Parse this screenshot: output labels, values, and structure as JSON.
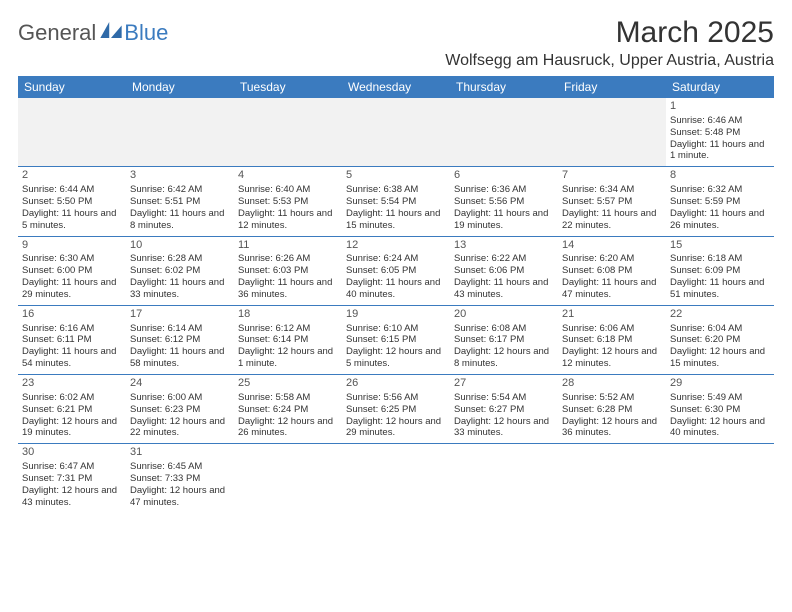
{
  "logo": {
    "text1": "General",
    "text2": "Blue"
  },
  "title": "March 2025",
  "location": "Wolfsegg am Hausruck, Upper Austria, Austria",
  "colors": {
    "header_bg": "#3b7bbf",
    "header_text": "#ffffff",
    "border": "#3b7bbf",
    "body_text": "#333333",
    "empty_bg": "#f2f2f2"
  },
  "day_headers": [
    "Sunday",
    "Monday",
    "Tuesday",
    "Wednesday",
    "Thursday",
    "Friday",
    "Saturday"
  ],
  "weeks": [
    [
      null,
      null,
      null,
      null,
      null,
      null,
      {
        "n": "1",
        "sr": "Sunrise: 6:46 AM",
        "ss": "Sunset: 5:48 PM",
        "dl": "Daylight: 11 hours and 1 minute."
      }
    ],
    [
      {
        "n": "2",
        "sr": "Sunrise: 6:44 AM",
        "ss": "Sunset: 5:50 PM",
        "dl": "Daylight: 11 hours and 5 minutes."
      },
      {
        "n": "3",
        "sr": "Sunrise: 6:42 AM",
        "ss": "Sunset: 5:51 PM",
        "dl": "Daylight: 11 hours and 8 minutes."
      },
      {
        "n": "4",
        "sr": "Sunrise: 6:40 AM",
        "ss": "Sunset: 5:53 PM",
        "dl": "Daylight: 11 hours and 12 minutes."
      },
      {
        "n": "5",
        "sr": "Sunrise: 6:38 AM",
        "ss": "Sunset: 5:54 PM",
        "dl": "Daylight: 11 hours and 15 minutes."
      },
      {
        "n": "6",
        "sr": "Sunrise: 6:36 AM",
        "ss": "Sunset: 5:56 PM",
        "dl": "Daylight: 11 hours and 19 minutes."
      },
      {
        "n": "7",
        "sr": "Sunrise: 6:34 AM",
        "ss": "Sunset: 5:57 PM",
        "dl": "Daylight: 11 hours and 22 minutes."
      },
      {
        "n": "8",
        "sr": "Sunrise: 6:32 AM",
        "ss": "Sunset: 5:59 PM",
        "dl": "Daylight: 11 hours and 26 minutes."
      }
    ],
    [
      {
        "n": "9",
        "sr": "Sunrise: 6:30 AM",
        "ss": "Sunset: 6:00 PM",
        "dl": "Daylight: 11 hours and 29 minutes."
      },
      {
        "n": "10",
        "sr": "Sunrise: 6:28 AM",
        "ss": "Sunset: 6:02 PM",
        "dl": "Daylight: 11 hours and 33 minutes."
      },
      {
        "n": "11",
        "sr": "Sunrise: 6:26 AM",
        "ss": "Sunset: 6:03 PM",
        "dl": "Daylight: 11 hours and 36 minutes."
      },
      {
        "n": "12",
        "sr": "Sunrise: 6:24 AM",
        "ss": "Sunset: 6:05 PM",
        "dl": "Daylight: 11 hours and 40 minutes."
      },
      {
        "n": "13",
        "sr": "Sunrise: 6:22 AM",
        "ss": "Sunset: 6:06 PM",
        "dl": "Daylight: 11 hours and 43 minutes."
      },
      {
        "n": "14",
        "sr": "Sunrise: 6:20 AM",
        "ss": "Sunset: 6:08 PM",
        "dl": "Daylight: 11 hours and 47 minutes."
      },
      {
        "n": "15",
        "sr": "Sunrise: 6:18 AM",
        "ss": "Sunset: 6:09 PM",
        "dl": "Daylight: 11 hours and 51 minutes."
      }
    ],
    [
      {
        "n": "16",
        "sr": "Sunrise: 6:16 AM",
        "ss": "Sunset: 6:11 PM",
        "dl": "Daylight: 11 hours and 54 minutes."
      },
      {
        "n": "17",
        "sr": "Sunrise: 6:14 AM",
        "ss": "Sunset: 6:12 PM",
        "dl": "Daylight: 11 hours and 58 minutes."
      },
      {
        "n": "18",
        "sr": "Sunrise: 6:12 AM",
        "ss": "Sunset: 6:14 PM",
        "dl": "Daylight: 12 hours and 1 minute."
      },
      {
        "n": "19",
        "sr": "Sunrise: 6:10 AM",
        "ss": "Sunset: 6:15 PM",
        "dl": "Daylight: 12 hours and 5 minutes."
      },
      {
        "n": "20",
        "sr": "Sunrise: 6:08 AM",
        "ss": "Sunset: 6:17 PM",
        "dl": "Daylight: 12 hours and 8 minutes."
      },
      {
        "n": "21",
        "sr": "Sunrise: 6:06 AM",
        "ss": "Sunset: 6:18 PM",
        "dl": "Daylight: 12 hours and 12 minutes."
      },
      {
        "n": "22",
        "sr": "Sunrise: 6:04 AM",
        "ss": "Sunset: 6:20 PM",
        "dl": "Daylight: 12 hours and 15 minutes."
      }
    ],
    [
      {
        "n": "23",
        "sr": "Sunrise: 6:02 AM",
        "ss": "Sunset: 6:21 PM",
        "dl": "Daylight: 12 hours and 19 minutes."
      },
      {
        "n": "24",
        "sr": "Sunrise: 6:00 AM",
        "ss": "Sunset: 6:23 PM",
        "dl": "Daylight: 12 hours and 22 minutes."
      },
      {
        "n": "25",
        "sr": "Sunrise: 5:58 AM",
        "ss": "Sunset: 6:24 PM",
        "dl": "Daylight: 12 hours and 26 minutes."
      },
      {
        "n": "26",
        "sr": "Sunrise: 5:56 AM",
        "ss": "Sunset: 6:25 PM",
        "dl": "Daylight: 12 hours and 29 minutes."
      },
      {
        "n": "27",
        "sr": "Sunrise: 5:54 AM",
        "ss": "Sunset: 6:27 PM",
        "dl": "Daylight: 12 hours and 33 minutes."
      },
      {
        "n": "28",
        "sr": "Sunrise: 5:52 AM",
        "ss": "Sunset: 6:28 PM",
        "dl": "Daylight: 12 hours and 36 minutes."
      },
      {
        "n": "29",
        "sr": "Sunrise: 5:49 AM",
        "ss": "Sunset: 6:30 PM",
        "dl": "Daylight: 12 hours and 40 minutes."
      }
    ],
    [
      {
        "n": "30",
        "sr": "Sunrise: 6:47 AM",
        "ss": "Sunset: 7:31 PM",
        "dl": "Daylight: 12 hours and 43 minutes."
      },
      {
        "n": "31",
        "sr": "Sunrise: 6:45 AM",
        "ss": "Sunset: 7:33 PM",
        "dl": "Daylight: 12 hours and 47 minutes."
      },
      null,
      null,
      null,
      null,
      null
    ]
  ]
}
